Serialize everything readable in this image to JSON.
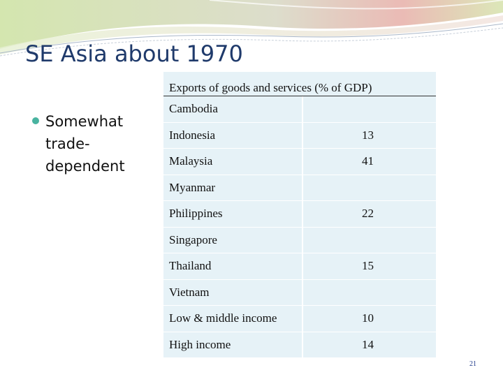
{
  "slide": {
    "title": "SE Asia about 1970",
    "bullet": [
      "Somewhat",
      "trade-",
      "dependent"
    ],
    "page_number": "21"
  },
  "table": {
    "header": "Exports of goods and services (% of GDP)",
    "rows": [
      {
        "country": "Cambodia",
        "value": ""
      },
      {
        "country": "Indonesia",
        "value": "13"
      },
      {
        "country": "Malaysia",
        "value": "41"
      },
      {
        "country": "Myanmar",
        "value": ""
      },
      {
        "country": "Philippines",
        "value": "22"
      },
      {
        "country": "Singapore",
        "value": ""
      },
      {
        "country": "Thailand",
        "value": "15"
      },
      {
        "country": "Vietnam",
        "value": ""
      },
      {
        "country": "Low & middle income",
        "value": "10"
      },
      {
        "country": "High income",
        "value": "14"
      }
    ]
  },
  "colors": {
    "title": "#1f3a6b",
    "bullet": "#49b3a0",
    "table_fill": "#e6f2f7",
    "banner_green": "#cfe3a6",
    "banner_pink": "#e8b3ad"
  }
}
